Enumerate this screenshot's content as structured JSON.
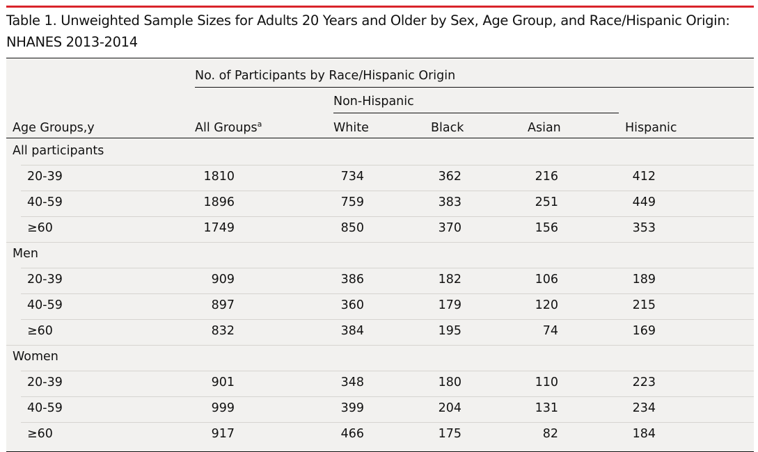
{
  "caption": "Table 1. Unweighted Sample Sizes for Adults 20 Years and Older by Sex, Age Group, and Race/Hispanic Origin: NHANES 2013-2014",
  "header": {
    "spanner": "No. of Participants by Race/Hispanic Origin",
    "subspanner": "Non-Hispanic",
    "col_age": "Age Groups,y",
    "col_all": "All Groups",
    "col_all_footnote": "a",
    "col_white": "White",
    "col_black": "Black",
    "col_asian": "Asian",
    "col_hispanic": "Hispanic"
  },
  "groups": [
    {
      "label": "All participants",
      "rows": [
        {
          "age": "20-39",
          "all": "1810",
          "white": "734",
          "black": "362",
          "asian": "216",
          "hispanic": "412"
        },
        {
          "age": "40-59",
          "all": "1896",
          "white": "759",
          "black": "383",
          "asian": "251",
          "hispanic": "449"
        },
        {
          "age": "≥60",
          "all": "1749",
          "white": "850",
          "black": "370",
          "asian": "156",
          "hispanic": "353"
        }
      ]
    },
    {
      "label": "Men",
      "rows": [
        {
          "age": "20-39",
          "all": "909",
          "white": "386",
          "black": "182",
          "asian": "106",
          "hispanic": "189"
        },
        {
          "age": "40-59",
          "all": "897",
          "white": "360",
          "black": "179",
          "asian": "120",
          "hispanic": "215"
        },
        {
          "age": "≥60",
          "all": "832",
          "white": "384",
          "black": "195",
          "asian": "74",
          "hispanic": "169"
        }
      ]
    },
    {
      "label": "Women",
      "rows": [
        {
          "age": "20-39",
          "all": "901",
          "white": "348",
          "black": "180",
          "asian": "110",
          "hispanic": "223"
        },
        {
          "age": "40-59",
          "all": "999",
          "white": "399",
          "black": "204",
          "asian": "131",
          "hispanic": "234"
        },
        {
          "age": "≥60",
          "all": "917",
          "white": "466",
          "black": "175",
          "asian": "82",
          "hispanic": "184"
        }
      ]
    }
  ]
}
